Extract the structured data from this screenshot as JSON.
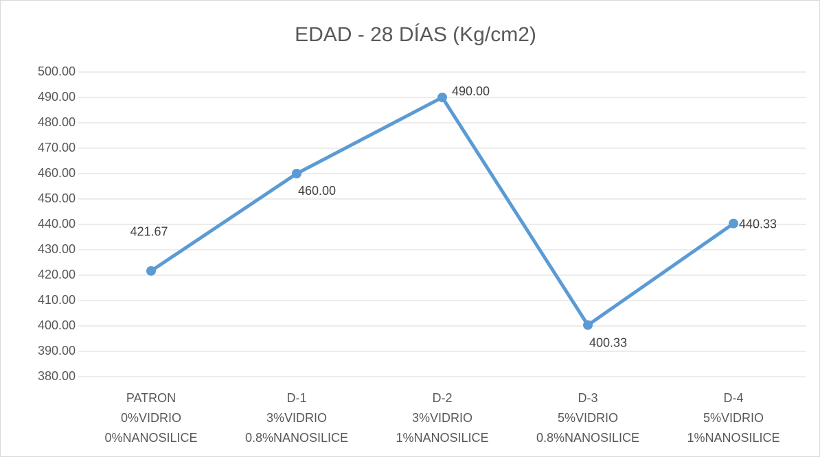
{
  "chart_data": {
    "type": "line",
    "title": "EDAD - 28 DÍAS (Kg/cm2)",
    "categories": [
      [
        "PATRON",
        "0%VIDRIO",
        "0%NANOSILICE"
      ],
      [
        "D-1",
        "3%VIDRIO",
        "0.8%NANOSILICE"
      ],
      [
        "D-2",
        "3%VIDRIO",
        "1%NANOSILICE"
      ],
      [
        "D-3",
        "5%VIDRIO",
        "0.8%NANOSILICE"
      ],
      [
        "D-4",
        "5%VIDRIO",
        "1%NANOSILICE"
      ]
    ],
    "series": [
      {
        "color": "#5b9bd5",
        "values": [
          421.67,
          460,
          490,
          400.33,
          440.33
        ],
        "value_labels": [
          "421.67",
          "460.00",
          "490.00",
          "400.33",
          "440.33"
        ]
      }
    ],
    "ylim": [
      380,
      500
    ],
    "yticks": [
      {
        "value": 380,
        "label": "380.00"
      },
      {
        "value": 390,
        "label": "390.00"
      },
      {
        "value": 400,
        "label": "400.00"
      },
      {
        "value": 410,
        "label": "410.00"
      },
      {
        "value": 420,
        "label": "420.00"
      },
      {
        "value": 430,
        "label": "430.00"
      },
      {
        "value": 440,
        "label": "440.00"
      },
      {
        "value": 450,
        "label": "450.00"
      },
      {
        "value": 460,
        "label": "460.00"
      },
      {
        "value": 470,
        "label": "470.00"
      },
      {
        "value": 480,
        "label": "480.00"
      },
      {
        "value": 490,
        "label": "490.00"
      },
      {
        "value": 500,
        "label": "500.00"
      }
    ],
    "grid": true
  }
}
